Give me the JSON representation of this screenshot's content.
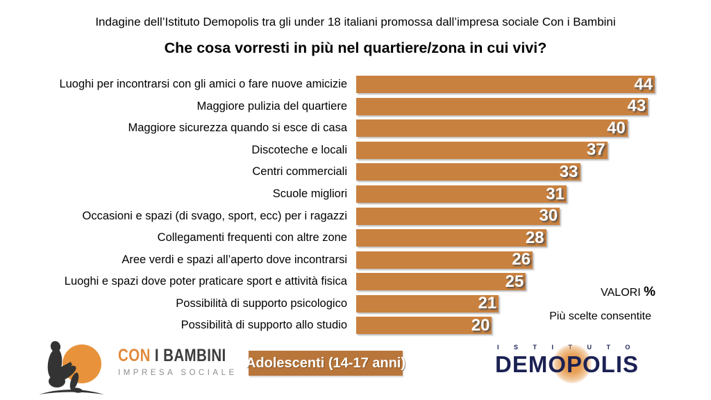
{
  "header": {
    "subtitle": "Indagine dell’Istituto Demopolis tra gli under 18 italiani promossa dall’impresa sociale Con i Bambini",
    "title": "Che cosa vorresti in più nel quartiere/zona in cui vivi?"
  },
  "chart_data": {
    "type": "bar",
    "orientation": "horizontal",
    "title": "Che cosa vorresti in più nel quartiere/zona in cui vivi?",
    "categories": [
      "Luoghi per incontrarsi con gli amici o fare nuove amicizie",
      "Maggiore pulizia del quartiere",
      "Maggiore sicurezza quando si esce di casa",
      "Discoteche e locali",
      "Centri commerciali",
      "Scuole migliori",
      "Occasioni e spazi (di svago, sport, ecc) per i ragazzi",
      "Collegamenti frequenti con altre zone",
      "Aree verdi e spazi all’aperto dove incontrarsi",
      "Luoghi e spazi dove poter praticare sport e attività fisica",
      "Possibilità di supporto psicologico",
      "Possibilità di supporto allo studio"
    ],
    "values": [
      44,
      43,
      40,
      37,
      33,
      31,
      30,
      28,
      26,
      25,
      21,
      20
    ],
    "unit": "%",
    "xlim": [
      0,
      44
    ],
    "grid": false,
    "bar_color": "#c9813f",
    "value_label_color": "#ffffff",
    "annotations": [
      "VALORI %",
      "Più scelte consentite"
    ]
  },
  "annotations": {
    "valori_label": "VALORI",
    "valori_percent": "%",
    "note": "Più scelte consentite"
  },
  "footer": {
    "badge": "Adolescenti (14-17 anni)",
    "con_i_bambini": {
      "line1_accent": "CON",
      "line1_rest": " I BAMBINI",
      "line2": "IMPRESA SOCIALE"
    },
    "demopolis": {
      "top": "ISTITUTO",
      "name": "DEMOPOLIS"
    }
  },
  "colors": {
    "bar": "#c9813f",
    "badge": "#b9763b",
    "navy": "#1b2153",
    "accent_orange": "#e8933b",
    "silhouette": "#333333",
    "gray_text": "#8c8c8c"
  }
}
